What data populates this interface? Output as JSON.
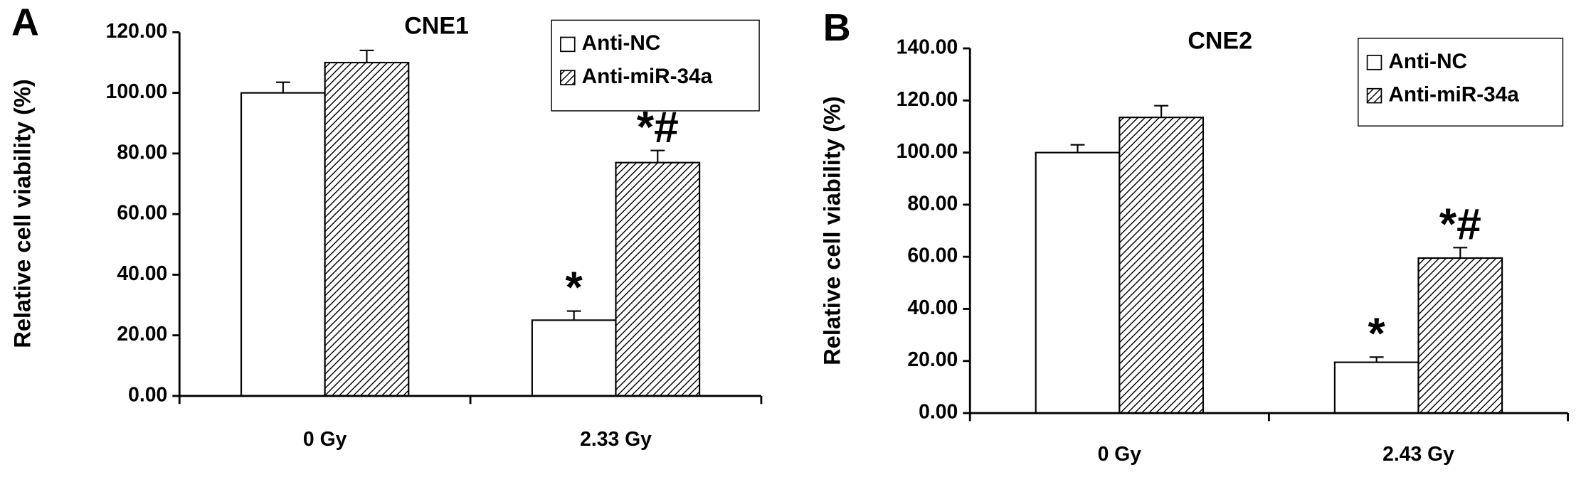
{
  "chart_data": [
    {
      "type": "bar",
      "panel_label": "A",
      "title": "CNE1",
      "ylabel": "Relative cell viability (%)",
      "categories": [
        "0 Gy",
        "2.33 Gy"
      ],
      "series": [
        {
          "name": "Anti-NC",
          "color": "#ffffff",
          "pattern": "none",
          "values": [
            100,
            25
          ],
          "errors": [
            3.5,
            3
          ],
          "value_annotations": [
            null,
            "*"
          ]
        },
        {
          "name": "Anti-miR-34a",
          "color": "#ffffff",
          "pattern": "hatch",
          "values": [
            110,
            77
          ],
          "errors": [
            4,
            4
          ],
          "value_annotations": [
            null,
            "*#"
          ]
        }
      ],
      "ylim": [
        0,
        120
      ],
      "yticks": [
        {
          "value": 0,
          "label": "0.00"
        },
        {
          "value": 20,
          "label": "20.00"
        },
        {
          "value": 40,
          "label": "40.00"
        },
        {
          "value": 60,
          "label": "60.00"
        },
        {
          "value": 80,
          "label": "80.00"
        },
        {
          "value": 100,
          "label": "100.00"
        },
        {
          "value": 120,
          "label": "120.00"
        }
      ],
      "legend": "upper right"
    },
    {
      "type": "bar",
      "panel_label": "B",
      "title": "CNE2",
      "ylabel": "Relative cell viability (%)",
      "categories": [
        "0 Gy",
        "2.43 Gy"
      ],
      "series": [
        {
          "name": "Anti-NC",
          "color": "#ffffff",
          "pattern": "none",
          "values": [
            100,
            19.5
          ],
          "errors": [
            3,
            2
          ],
          "value_annotations": [
            null,
            "*"
          ]
        },
        {
          "name": "Anti-miR-34a",
          "color": "#ffffff",
          "pattern": "hatch",
          "values": [
            113.5,
            59.5
          ],
          "errors": [
            4.5,
            4
          ],
          "value_annotations": [
            null,
            "*#"
          ]
        }
      ],
      "ylim": [
        0,
        140
      ],
      "yticks": [
        {
          "value": 0,
          "label": "0.00"
        },
        {
          "value": 20,
          "label": "20.00"
        },
        {
          "value": 40,
          "label": "40.00"
        },
        {
          "value": 60,
          "label": "60.00"
        },
        {
          "value": 80,
          "label": "80.00"
        },
        {
          "value": 100,
          "label": "100.00"
        },
        {
          "value": 120,
          "label": "120.00"
        },
        {
          "value": 140,
          "label": "140.00"
        }
      ],
      "legend": "upper right"
    }
  ]
}
